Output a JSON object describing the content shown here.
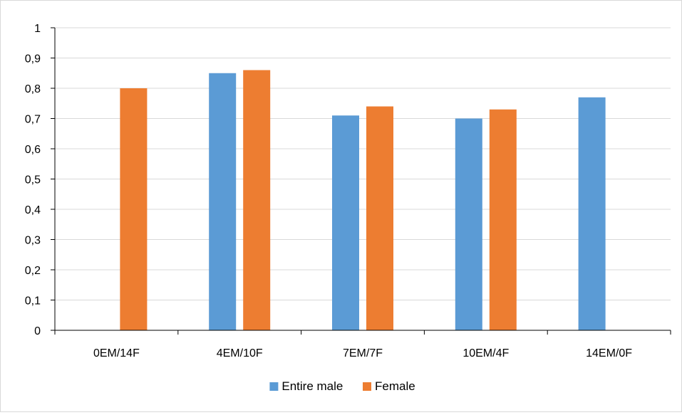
{
  "chart_data": {
    "type": "bar",
    "title": "",
    "xlabel": "",
    "ylabel": "",
    "categories": [
      "0EM/14F",
      "4EM/10F",
      "7EM/7F",
      "10EM/4F",
      "14EM/0F"
    ],
    "series": [
      {
        "name": "Entire male",
        "color": "#5b9bd5",
        "values": [
          null,
          0.85,
          0.71,
          0.7,
          0.77
        ]
      },
      {
        "name": "Female",
        "color": "#ed7d31",
        "values": [
          0.8,
          0.86,
          0.74,
          0.73,
          null
        ]
      }
    ],
    "ylim": [
      0,
      1
    ],
    "yticks": [
      0,
      0.1,
      0.2,
      0.3,
      0.4,
      0.5,
      0.6,
      0.7,
      0.8,
      0.9,
      1
    ],
    "ytick_labels": [
      "0",
      "0,1",
      "0,2",
      "0,3",
      "0,4",
      "0,5",
      "0,6",
      "0,7",
      "0,8",
      "0,9",
      "1"
    ],
    "grid": true,
    "legend": "bottom-center",
    "colors": {
      "gridline": "#d9d9d9",
      "axis": "#000000"
    }
  }
}
